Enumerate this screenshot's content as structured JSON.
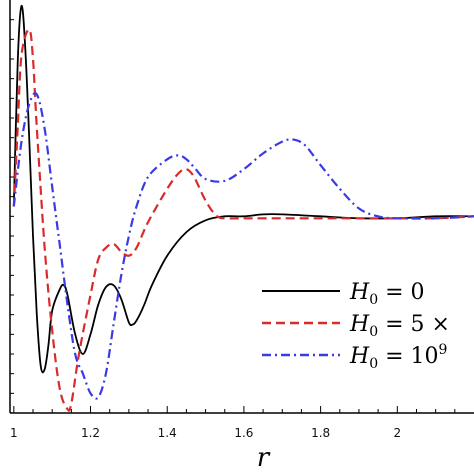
{
  "chart_data": {
    "type": "line",
    "xlabel": "r",
    "ylabel": "",
    "xlim": [
      0.99,
      2.2
    ],
    "ylim": [
      0.0,
      2.1
    ],
    "x_ticks": [
      1.0,
      1.2,
      1.4,
      1.6,
      1.8,
      2.0
    ],
    "x_tick_labels": [
      "1",
      "1.2",
      "1.4",
      "1.6",
      "1.8",
      "2"
    ],
    "y_minor_ticks": [
      0.1,
      0.2,
      0.3,
      0.4,
      0.5,
      0.6,
      0.7,
      0.8,
      0.9,
      1.0,
      1.1,
      1.2,
      1.3,
      1.4,
      1.5,
      1.6,
      1.7,
      1.8,
      1.9,
      2.0
    ],
    "legend_position": "bottom-right",
    "series": [
      {
        "name": "H_0 = 0",
        "legend_label": "H0 = 0",
        "color": "#000000",
        "dash": "solid",
        "x": [
          1.0,
          1.01,
          1.02,
          1.03,
          1.04,
          1.05,
          1.06,
          1.07,
          1.08,
          1.09,
          1.1,
          1.12,
          1.13,
          1.14,
          1.16,
          1.18,
          1.2,
          1.22,
          1.24,
          1.26,
          1.28,
          1.3,
          1.31,
          1.32,
          1.34,
          1.36,
          1.4,
          1.45,
          1.5,
          1.55,
          1.6,
          1.65,
          1.7,
          1.8,
          1.9,
          2.0,
          2.1,
          2.2
        ],
        "y": [
          1.05,
          1.78,
          2.07,
          1.85,
          1.4,
          0.9,
          0.5,
          0.24,
          0.22,
          0.34,
          0.52,
          0.63,
          0.65,
          0.6,
          0.4,
          0.3,
          0.4,
          0.55,
          0.64,
          0.65,
          0.58,
          0.46,
          0.45,
          0.47,
          0.55,
          0.65,
          0.8,
          0.92,
          0.98,
          1.0,
          1.0,
          1.01,
          1.01,
          1.0,
          0.99,
          0.99,
          1.0,
          1.0
        ]
      },
      {
        "name": "H_0 = 5 ×",
        "legend_label": "H0 = 5 ×",
        "color": "#d92b2b",
        "dash": "dashed",
        "x": [
          1.0,
          1.01,
          1.02,
          1.04,
          1.05,
          1.06,
          1.08,
          1.1,
          1.12,
          1.14,
          1.15,
          1.17,
          1.2,
          1.22,
          1.24,
          1.26,
          1.28,
          1.3,
          1.32,
          1.35,
          1.4,
          1.43,
          1.45,
          1.47,
          1.5,
          1.53,
          1.56,
          1.6,
          1.7,
          1.8,
          1.9,
          2.0,
          2.1,
          2.2
        ],
        "y": [
          1.05,
          1.45,
          1.82,
          1.95,
          1.8,
          1.45,
          0.85,
          0.42,
          0.12,
          0.02,
          0.05,
          0.3,
          0.6,
          0.78,
          0.84,
          0.86,
          0.82,
          0.8,
          0.84,
          0.97,
          1.14,
          1.22,
          1.24,
          1.2,
          1.08,
          1.0,
          0.99,
          0.99,
          0.99,
          0.99,
          0.99,
          0.99,
          0.99,
          1.0
        ]
      },
      {
        "name": "H_0 = 10^9",
        "legend_label": "H0 = 10^9",
        "color": "#3a3ae6",
        "dash": "dashdot",
        "x": [
          1.0,
          1.02,
          1.04,
          1.06,
          1.08,
          1.1,
          1.12,
          1.14,
          1.16,
          1.18,
          1.2,
          1.22,
          1.24,
          1.26,
          1.28,
          1.3,
          1.32,
          1.35,
          1.4,
          1.43,
          1.45,
          1.47,
          1.5,
          1.55,
          1.6,
          1.65,
          1.7,
          1.73,
          1.76,
          1.8,
          1.85,
          1.9,
          1.95,
          2.0,
          2.1,
          2.2
        ],
        "y": [
          1.05,
          1.38,
          1.57,
          1.62,
          1.45,
          1.15,
          0.85,
          0.55,
          0.3,
          0.2,
          0.1,
          0.08,
          0.2,
          0.45,
          0.7,
          0.9,
          1.05,
          1.2,
          1.29,
          1.31,
          1.29,
          1.25,
          1.19,
          1.18,
          1.24,
          1.32,
          1.38,
          1.39,
          1.36,
          1.26,
          1.14,
          1.04,
          1.0,
          0.99,
          0.99,
          1.0
        ]
      }
    ]
  }
}
